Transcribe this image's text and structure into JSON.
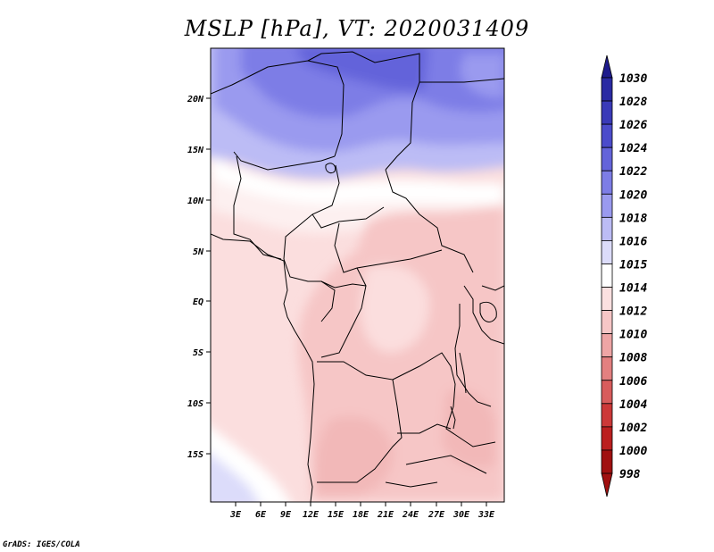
{
  "title": "MSLP [hPa], VT: 2020031409",
  "credit": "GrADS: IGES/COLA",
  "map": {
    "lon_labels": [
      "3E",
      "6E",
      "9E",
      "12E",
      "15E",
      "18E",
      "21E",
      "24E",
      "27E",
      "30E",
      "33E"
    ],
    "lat_labels": [
      "20N",
      "15N",
      "10N",
      "5N",
      "EQ",
      "5S",
      "10S",
      "15S"
    ]
  },
  "colorbar": {
    "levels": [
      "1030",
      "1028",
      "1026",
      "1024",
      "1022",
      "1020",
      "1018",
      "1016",
      "1015",
      "1014",
      "1012",
      "1010",
      "1008",
      "1006",
      "1004",
      "1002",
      "1000",
      "998"
    ],
    "colors": [
      "#1e1b8c",
      "#2a2aa3",
      "#3a3ab8",
      "#4c4ccb",
      "#6464da",
      "#7d7de6",
      "#9a9aef",
      "#bcbcf5",
      "#dcdcfa",
      "#ffffff",
      "#fbe0e0",
      "#f6c6c6",
      "#eea5a5",
      "#e38080",
      "#d85c5c",
      "#cc3838",
      "#bb1f1f",
      "#a01010"
    ]
  }
}
